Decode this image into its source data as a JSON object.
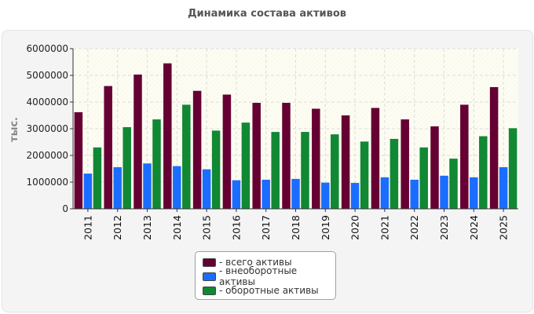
{
  "chart_data": {
    "type": "bar",
    "title": "Динамика состава активов",
    "ylabel": "тыс.",
    "xlabel": "",
    "categories": [
      "2011",
      "2012",
      "2013",
      "2014",
      "2015",
      "2016",
      "2017",
      "2018",
      "2019",
      "2020",
      "2021",
      "2022",
      "2023",
      "2024",
      "2025"
    ],
    "ylim": [
      0,
      6000000
    ],
    "yticks": [
      "0",
      "1000000",
      "2000000",
      "3000000",
      "4000000",
      "5000000",
      "6000000"
    ],
    "grid": true,
    "legend_position": "bottom-center",
    "series": [
      {
        "name": "- всего активы",
        "color": "#660033",
        "values": [
          3620000,
          4600000,
          5030000,
          5450000,
          4420000,
          4280000,
          3970000,
          3970000,
          3750000,
          3500000,
          3780000,
          3350000,
          3090000,
          3900000,
          4560000
        ]
      },
      {
        "name": "- внеоборотные активы",
        "color": "#1a6dff",
        "values": [
          1320000,
          1560000,
          1700000,
          1600000,
          1480000,
          1070000,
          1090000,
          1120000,
          980000,
          970000,
          1180000,
          1090000,
          1240000,
          1180000,
          1560000
        ]
      },
      {
        "name": "- оборотные активы",
        "color": "#118833",
        "values": [
          2300000,
          3060000,
          3350000,
          3900000,
          2930000,
          3230000,
          2880000,
          2880000,
          2790000,
          2520000,
          2620000,
          2300000,
          1880000,
          2720000,
          3020000
        ]
      }
    ]
  }
}
